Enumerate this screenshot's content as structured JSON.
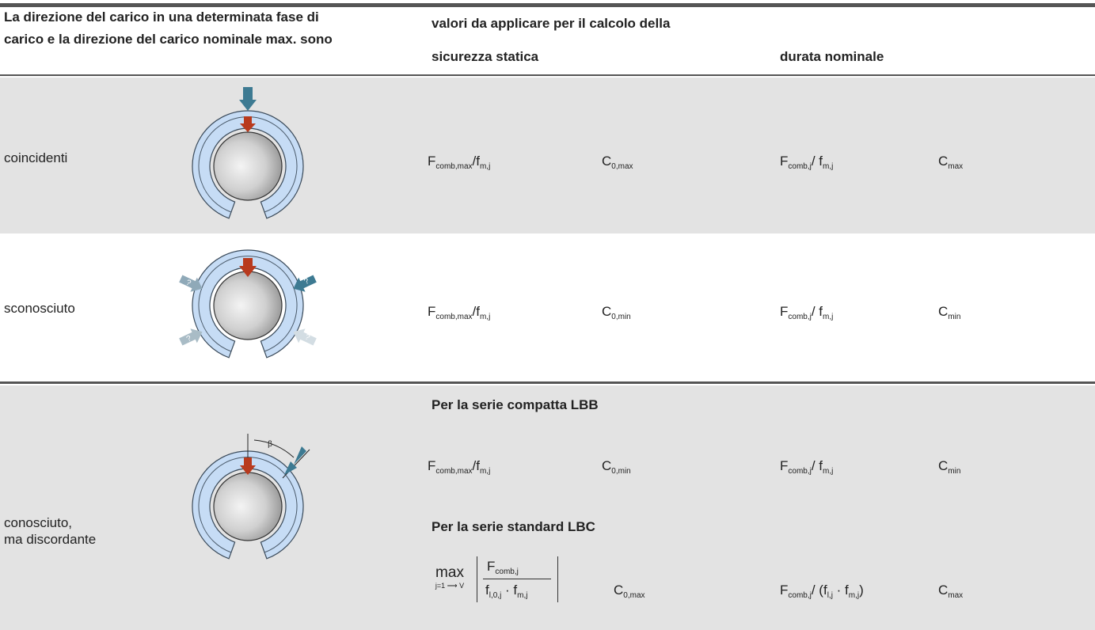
{
  "header": {
    "col1": [
      "La direzione del carico in una determinata fase di",
      "carico e la direzione del carico nominale max. sono"
    ],
    "values_title": "valori da applicare per il calcolo della",
    "static": "sicurezza statica",
    "rating": "durata nominale"
  },
  "unknown_marker": "?",
  "angle_label": "β",
  "rows": [
    {
      "label": [
        "coincidenti"
      ],
      "static_formula": [
        "F",
        {
          "sub": "comb,max"
        },
        "/f",
        {
          "sub": "m,j"
        }
      ],
      "static_c": [
        "C",
        {
          "sub": "0,max"
        }
      ],
      "rating_formula": [
        "F",
        {
          "sub": "comb,j"
        },
        "/ f",
        {
          "sub": "m,j"
        }
      ],
      "rating_c": [
        "C",
        {
          "sub": "max"
        }
      ]
    },
    {
      "label": [
        "sconosciuto"
      ],
      "static_formula": [
        "F",
        {
          "sub": "comb,max"
        },
        "/f",
        {
          "sub": "m,j"
        }
      ],
      "static_c": [
        "C",
        {
          "sub": "0,min"
        }
      ],
      "rating_formula": [
        "F",
        {
          "sub": "comb,j"
        },
        "/ f",
        {
          "sub": "m,j"
        }
      ],
      "rating_c": [
        "C",
        {
          "sub": "min"
        }
      ]
    },
    {
      "label": [
        "conosciuto,",
        "ma discordante"
      ],
      "groups": [
        {
          "title": "Per la serie compatta LBB",
          "static_formula": [
            "F",
            {
              "sub": "comb,max"
            },
            "/f",
            {
              "sub": "m,j"
            }
          ],
          "static_c": [
            "C",
            {
              "sub": "0,min"
            }
          ],
          "rating_formula": [
            "F",
            {
              "sub": "comb,j"
            },
            "/ f",
            {
              "sub": "m,j"
            }
          ],
          "rating_c": [
            "C",
            {
              "sub": "min"
            }
          ]
        },
        {
          "title": "Per la serie standard LBC",
          "static_max": {
            "op": "max",
            "range": "j=1 ⟶ V",
            "numerator": [
              "F",
              {
                "sub": "comb,j"
              }
            ],
            "denominator": [
              "f",
              {
                "sub": "l,0,j"
              },
              " · f",
              {
                "sub": "m,j"
              }
            ]
          },
          "static_c": [
            "C",
            {
              "sub": "0,max"
            }
          ],
          "rating_formula": [
            "F",
            {
              "sub": "comb,j"
            },
            "/ (f",
            {
              "sub": "l,j"
            },
            " · f",
            {
              "sub": "m,j"
            },
            ")"
          ],
          "rating_c": [
            "C",
            {
              "sub": "max"
            }
          ]
        }
      ]
    }
  ]
}
